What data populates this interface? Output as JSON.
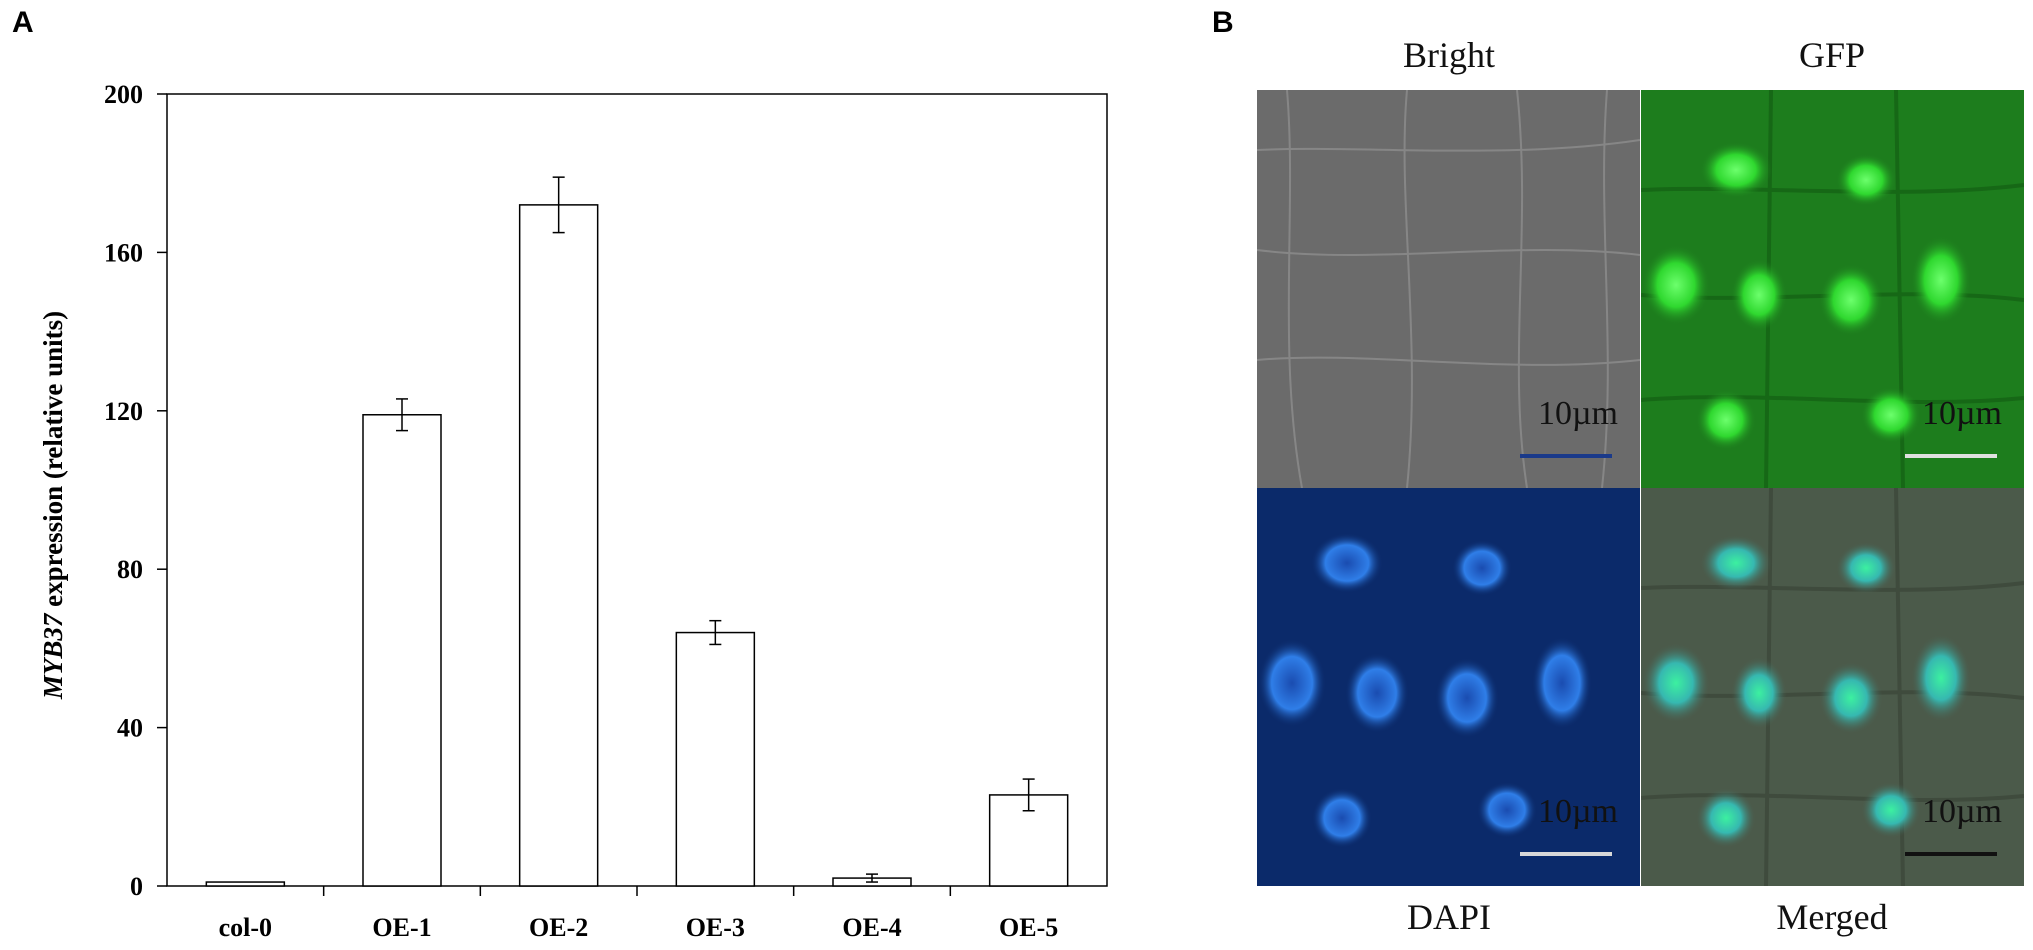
{
  "panels": {
    "a_letter": "A",
    "b_letter": "B"
  },
  "chart_data": {
    "type": "bar",
    "categories": [
      "col-0",
      "OE-1",
      "OE-2",
      "OE-3",
      "OE-4",
      "OE-5"
    ],
    "values": [
      1,
      119,
      172,
      64,
      2,
      23
    ],
    "errors": [
      0,
      4,
      7,
      3,
      1,
      4
    ],
    "ylabel_italic": "MYB37",
    "ylabel_rest": " expression (relative units)",
    "ylim": [
      0,
      200
    ],
    "yticks": [
      0,
      40,
      80,
      120,
      160,
      200
    ],
    "grid": false,
    "bar_color": "#ffffff",
    "edge_color": "#000000"
  },
  "microscopy": {
    "titles": {
      "bright": "Bright",
      "gfp": "GFP",
      "dapi": "DAPI",
      "merged": "Merged"
    },
    "scale_label": "10µm",
    "colors": {
      "bright": "#666666",
      "gfp": "#1f8a1f",
      "dapi": "#0a2a66",
      "merged": "#4d5a4a"
    }
  }
}
